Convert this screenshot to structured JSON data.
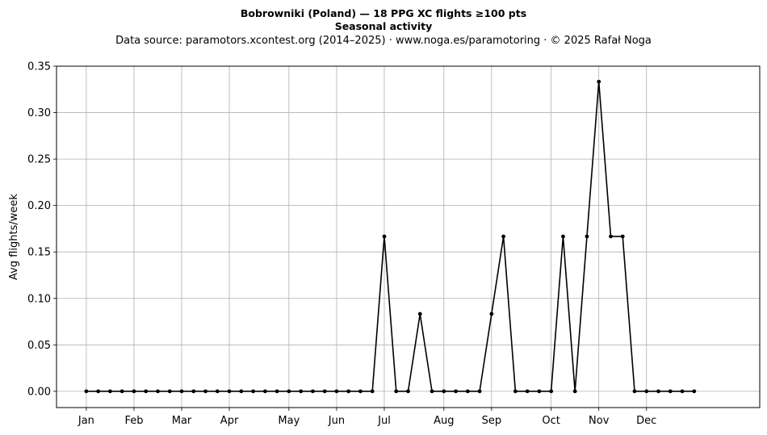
{
  "header": {
    "title": "Bobrowniki (Poland)  —  18 PPG XC flights ≥100 pts",
    "subtitle": "Seasonal activity",
    "source": "Data source: paramotors.xcontest.org (2014–2025)  ·  www.noga.es/paramotoring  ·  © 2025 Rafał Noga"
  },
  "chart_data": {
    "type": "line",
    "title": "Bobrowniki (Poland)  —  18 PPG XC flights ≥100 pts",
    "subtitle": "Seasonal activity",
    "xlabel": "",
    "ylabel": "Avg flights/week",
    "x_unit": "week of year",
    "xlim": [
      -2.5,
      56.5
    ],
    "ylim": [
      -0.0175,
      0.35
    ],
    "yticks": [
      0.0,
      0.05,
      0.1,
      0.15,
      0.2,
      0.25,
      0.3,
      0.35
    ],
    "ytick_labels": [
      "0.00",
      "0.05",
      "0.10",
      "0.15",
      "0.20",
      "0.25",
      "0.30",
      "0.35"
    ],
    "xticks": [
      0,
      4,
      8,
      12,
      17,
      21,
      25,
      30,
      34,
      39,
      43,
      47
    ],
    "xtick_labels": [
      "Jan",
      "Feb",
      "Mar",
      "Apr",
      "May",
      "Jun",
      "Jul",
      "Aug",
      "Sep",
      "Oct",
      "Nov",
      "Dec"
    ],
    "grid": true,
    "color": "#000000",
    "series": [
      {
        "x": [
          0,
          1,
          2,
          3,
          4,
          5,
          6,
          7,
          8,
          9,
          10,
          11,
          12,
          13,
          14,
          15,
          16,
          17,
          18,
          19,
          20,
          21,
          22,
          23,
          24,
          25,
          26,
          27,
          28,
          29,
          30,
          31,
          32,
          33,
          34,
          35,
          36,
          37,
          38,
          39,
          40,
          41,
          42,
          43,
          44,
          45,
          46,
          47,
          48,
          49,
          50,
          51
        ],
        "values": [
          0,
          0,
          0,
          0,
          0,
          0,
          0,
          0,
          0,
          0,
          0,
          0,
          0,
          0,
          0,
          0,
          0,
          0,
          0,
          0,
          0,
          0,
          0,
          0,
          0,
          0.1667,
          0,
          0,
          0.0833,
          0,
          0,
          0,
          0,
          0,
          0.0833,
          0.1667,
          0,
          0,
          0,
          0,
          0.1667,
          0,
          0.1667,
          0.3333,
          0.1667,
          0.1667,
          0,
          0,
          0,
          0,
          0,
          0
        ]
      }
    ]
  }
}
